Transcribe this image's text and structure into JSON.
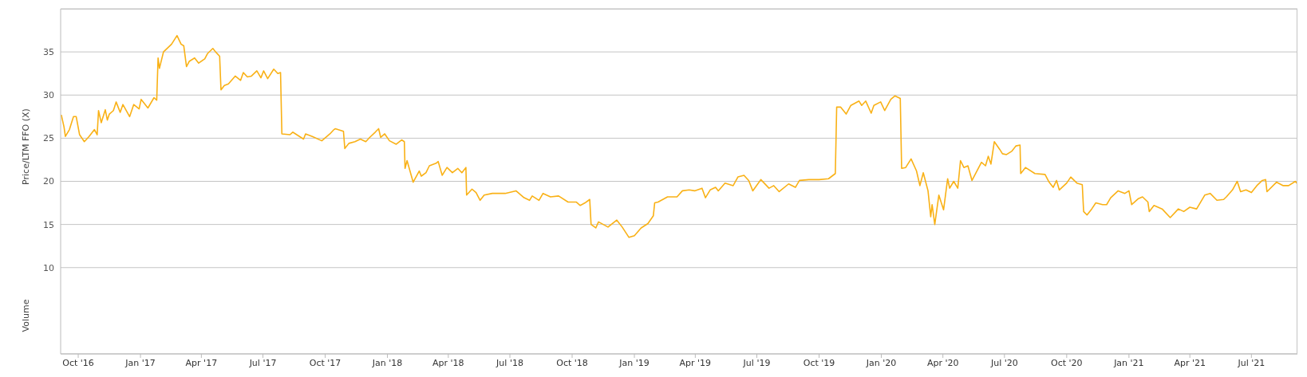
{
  "chart_data": {
    "type": "line",
    "ylabel": "Price/LTM FFO (X)",
    "annotations": [
      "Volume"
    ],
    "x": [
      "2016-09-06",
      "2016-09-10",
      "2016-09-12",
      "2016-09-18",
      "2016-09-24",
      "2016-09-28",
      "2016-10-03",
      "2016-10-10",
      "2016-10-17",
      "2016-10-25",
      "2016-10-29",
      "2016-10-31",
      "2016-11-04",
      "2016-11-10",
      "2016-11-13",
      "2016-11-16",
      "2016-11-22",
      "2016-11-26",
      "2016-12-02",
      "2016-12-06",
      "2016-12-16",
      "2016-12-22",
      "2016-12-30",
      "2017-01-02",
      "2017-01-12",
      "2017-01-21",
      "2017-01-25",
      "2017-01-27",
      "2017-01-29",
      "2017-02-04",
      "2017-02-08",
      "2017-02-16",
      "2017-02-24",
      "2017-03-02",
      "2017-03-06",
      "2017-03-10",
      "2017-03-14",
      "2017-03-22",
      "2017-03-28",
      "2017-04-06",
      "2017-04-10",
      "2017-04-18",
      "2017-04-22",
      "2017-04-28",
      "2017-04-30",
      "2017-05-05",
      "2017-05-11",
      "2017-05-21",
      "2017-05-29",
      "2017-06-02",
      "2017-06-08",
      "2017-06-14",
      "2017-06-22",
      "2017-06-28",
      "2017-07-02",
      "2017-07-08",
      "2017-07-17",
      "2017-07-23",
      "2017-07-27",
      "2017-07-29",
      "2017-08-10",
      "2017-08-14",
      "2017-08-30",
      "2017-09-02",
      "2017-09-12",
      "2017-09-26",
      "2017-10-08",
      "2017-10-14",
      "2017-10-16",
      "2017-10-28",
      "2017-10-30",
      "2017-11-05",
      "2017-11-14",
      "2017-11-22",
      "2017-11-30",
      "2017-12-06",
      "2017-12-14",
      "2017-12-19",
      "2017-12-22",
      "2017-12-28",
      "2018-01-04",
      "2018-01-14",
      "2018-01-22",
      "2018-01-26",
      "2018-01-27",
      "2018-01-30",
      "2018-02-08",
      "2018-02-17",
      "2018-02-20",
      "2018-02-27",
      "2018-03-04",
      "2018-03-14",
      "2018-03-17",
      "2018-03-23",
      "2018-03-30",
      "2018-04-07",
      "2018-04-15",
      "2018-04-21",
      "2018-04-27",
      "2018-04-28",
      "2018-05-06",
      "2018-05-12",
      "2018-05-18",
      "2018-05-24",
      "2018-06-05",
      "2018-06-24",
      "2018-07-10",
      "2018-07-22",
      "2018-07-30",
      "2018-08-03",
      "2018-08-13",
      "2018-08-19",
      "2018-08-30",
      "2018-09-11",
      "2018-09-25",
      "2018-10-07",
      "2018-10-13",
      "2018-10-20",
      "2018-10-27",
      "2018-10-29",
      "2018-11-05",
      "2018-11-09",
      "2018-11-23",
      "2018-12-06",
      "2018-12-14",
      "2018-12-24",
      "2019-01-01",
      "2019-01-11",
      "2019-01-21",
      "2019-01-29",
      "2019-01-31",
      "2019-02-05",
      "2019-02-19",
      "2019-03-05",
      "2019-03-13",
      "2019-03-23",
      "2019-03-31",
      "2019-04-11",
      "2019-04-16",
      "2019-04-23",
      "2019-05-01",
      "2019-05-05",
      "2019-05-15",
      "2019-05-27",
      "2019-06-03",
      "2019-06-12",
      "2019-06-19",
      "2019-06-25",
      "2019-07-07",
      "2019-07-19",
      "2019-07-26",
      "2019-08-03",
      "2019-08-17",
      "2019-08-27",
      "2019-09-02",
      "2019-09-16",
      "2019-10-01",
      "2019-10-15",
      "2019-10-25",
      "2019-10-27",
      "2019-11-02",
      "2019-11-10",
      "2019-11-17",
      "2019-11-29",
      "2019-12-03",
      "2019-12-09",
      "2019-12-17",
      "2019-12-21",
      "2019-12-31",
      "2020-01-06",
      "2020-01-15",
      "2020-01-21",
      "2020-01-29",
      "2020-01-31",
      "2020-02-06",
      "2020-02-14",
      "2020-02-22",
      "2020-02-27",
      "2020-03-03",
      "2020-03-10",
      "2020-03-14",
      "2020-03-16",
      "2020-03-20",
      "2020-03-26",
      "2020-04-02",
      "2020-04-08",
      "2020-04-11",
      "2020-04-17",
      "2020-04-23",
      "2020-04-27",
      "2020-05-02",
      "2020-05-08",
      "2020-05-14",
      "2020-05-20",
      "2020-05-28",
      "2020-06-03",
      "2020-06-07",
      "2020-06-11",
      "2020-06-16",
      "2020-06-24",
      "2020-06-28",
      "2020-07-04",
      "2020-07-12",
      "2020-07-18",
      "2020-07-24",
      "2020-07-25",
      "2020-08-01",
      "2020-08-15",
      "2020-08-30",
      "2020-09-05",
      "2020-09-11",
      "2020-09-16",
      "2020-09-20",
      "2020-10-01",
      "2020-10-07",
      "2020-10-16",
      "2020-10-24",
      "2020-10-26",
      "2020-10-31",
      "2020-11-07",
      "2020-11-13",
      "2020-11-23",
      "2020-11-29",
      "2020-12-05",
      "2020-12-16",
      "2020-12-26",
      "2021-01-01",
      "2021-01-05",
      "2021-01-15",
      "2021-01-21",
      "2021-01-29",
      "2021-01-31",
      "2021-02-07",
      "2021-02-19",
      "2021-03-03",
      "2021-03-15",
      "2021-03-23",
      "2021-04-01",
      "2021-04-11",
      "2021-04-23",
      "2021-05-01",
      "2021-05-11",
      "2021-05-21",
      "2021-05-25",
      "2021-06-03",
      "2021-06-10",
      "2021-06-15",
      "2021-06-23",
      "2021-07-01",
      "2021-07-09",
      "2021-07-17",
      "2021-07-22",
      "2021-07-24",
      "2021-08-07",
      "2021-08-17",
      "2021-08-25",
      "2021-09-04",
      "2021-09-07"
    ],
    "values": [
      27.7,
      26.3,
      25.2,
      26.0,
      27.5,
      27.5,
      25.4,
      24.6,
      25.2,
      26.0,
      25.4,
      28.2,
      26.8,
      28.3,
      27.1,
      27.8,
      28.2,
      29.2,
      28.0,
      28.9,
      27.5,
      28.9,
      28.4,
      29.5,
      28.5,
      29.7,
      29.4,
      34.3,
      33.1,
      35.0,
      35.3,
      35.9,
      36.9,
      35.9,
      35.7,
      33.3,
      33.9,
      34.3,
      33.7,
      34.2,
      34.8,
      35.4,
      35.0,
      34.5,
      30.6,
      31.1,
      31.3,
      32.2,
      31.7,
      32.6,
      32.1,
      32.2,
      32.8,
      32.0,
      32.8,
      31.9,
      33.0,
      32.5,
      32.6,
      25.5,
      25.4,
      25.7,
      24.9,
      25.5,
      25.2,
      24.7,
      25.5,
      26.0,
      26.1,
      25.8,
      23.8,
      24.4,
      24.6,
      24.9,
      24.6,
      25.1,
      25.7,
      26.1,
      25.1,
      25.5,
      24.7,
      24.3,
      24.8,
      24.6,
      21.5,
      22.4,
      19.9,
      21.2,
      20.6,
      21.0,
      21.8,
      22.1,
      22.3,
      20.7,
      21.6,
      21.0,
      21.5,
      21.0,
      21.6,
      18.4,
      19.1,
      18.7,
      17.8,
      18.4,
      18.6,
      18.6,
      18.9,
      18.1,
      17.8,
      18.3,
      17.8,
      18.6,
      18.2,
      18.3,
      17.6,
      17.6,
      17.2,
      17.5,
      17.9,
      15.0,
      14.6,
      15.3,
      14.7,
      15.5,
      14.7,
      13.5,
      13.7,
      14.6,
      15.1,
      16.0,
      17.5,
      17.6,
      18.2,
      18.2,
      18.9,
      19.0,
      18.9,
      19.2,
      18.1,
      19.0,
      19.3,
      18.9,
      19.8,
      19.5,
      20.5,
      20.7,
      20.1,
      18.9,
      20.2,
      19.2,
      19.5,
      18.8,
      19.7,
      19.3,
      20.1,
      20.2,
      20.2,
      20.3,
      20.9,
      28.6,
      28.6,
      27.8,
      28.8,
      29.3,
      28.8,
      29.3,
      27.9,
      28.8,
      29.2,
      28.2,
      29.5,
      29.9,
      29.6,
      21.5,
      21.6,
      22.6,
      21.2,
      19.5,
      21.0,
      18.9,
      15.9,
      17.3,
      15.0,
      18.4,
      16.7,
      20.3,
      19.2,
      20.0,
      19.2,
      22.4,
      21.6,
      21.8,
      20.1,
      21.0,
      22.2,
      21.8,
      22.9,
      22.0,
      24.6,
      23.7,
      23.2,
      23.1,
      23.5,
      24.1,
      24.2,
      20.9,
      21.6,
      20.9,
      20.8,
      19.9,
      19.3,
      20.1,
      19.0,
      19.8,
      20.5,
      19.8,
      19.6,
      16.5,
      16.1,
      16.8,
      17.5,
      17.3,
      17.3,
      18.1,
      18.9,
      18.6,
      18.9,
      17.3,
      18.0,
      18.2,
      17.6,
      16.5,
      17.2,
      16.8,
      15.8,
      16.8,
      16.5,
      17.0,
      16.8,
      18.4,
      18.6,
      17.8,
      17.9,
      18.2,
      19.0,
      20.0,
      18.8,
      19.0,
      18.7,
      19.5,
      20.1,
      20.2,
      18.8,
      19.9,
      19.5,
      19.5,
      20.0,
      19.7
    ],
    "color": "#f9b116",
    "xlim": [
      "2016-09-05",
      "2021-09-07"
    ],
    "xticks": [
      {
        "value": "2016-10-01",
        "label": "Oct '16"
      },
      {
        "value": "2017-01-01",
        "label": "Jan '17"
      },
      {
        "value": "2017-04-01",
        "label": "Apr '17"
      },
      {
        "value": "2017-07-01",
        "label": "Jul '17"
      },
      {
        "value": "2017-10-01",
        "label": "Oct '17"
      },
      {
        "value": "2018-01-01",
        "label": "Jan '18"
      },
      {
        "value": "2018-04-01",
        "label": "Apr '18"
      },
      {
        "value": "2018-07-01",
        "label": "Jul '18"
      },
      {
        "value": "2018-10-01",
        "label": "Oct '18"
      },
      {
        "value": "2019-01-01",
        "label": "Jan '19"
      },
      {
        "value": "2019-04-01",
        "label": "Apr '19"
      },
      {
        "value": "2019-07-01",
        "label": "Jul '19"
      },
      {
        "value": "2019-10-01",
        "label": "Oct '19"
      },
      {
        "value": "2020-01-01",
        "label": "Jan '20"
      },
      {
        "value": "2020-04-01",
        "label": "Apr '20"
      },
      {
        "value": "2020-07-01",
        "label": "Jul '20"
      },
      {
        "value": "2020-10-01",
        "label": "Oct '20"
      },
      {
        "value": "2021-01-01",
        "label": "Jan '21"
      },
      {
        "value": "2021-04-01",
        "label": "Apr '21"
      },
      {
        "value": "2021-07-01",
        "label": "Jul '21"
      }
    ],
    "ylim": [
      0,
      40
    ],
    "yticks": [
      10,
      15,
      20,
      25,
      30,
      35
    ],
    "grid": "y",
    "marker": "none",
    "line_style": "solid"
  }
}
